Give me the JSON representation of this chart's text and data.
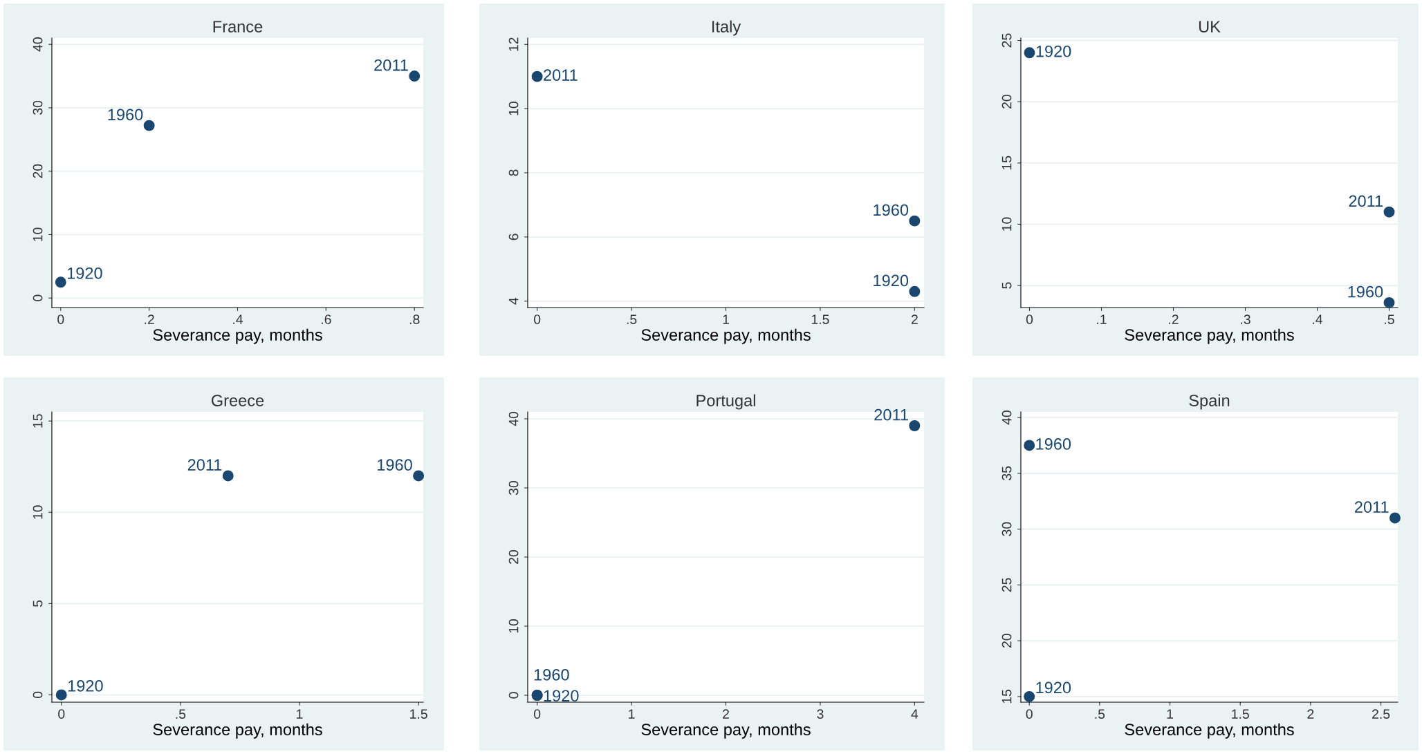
{
  "chart_data": [
    {
      "type": "scatter",
      "title": "France",
      "xlabel": "Severance pay, months",
      "x": [
        0,
        0.2,
        0.8
      ],
      "values": [
        2.5,
        27.2,
        35
      ],
      "annotations": [
        {
          "text": "1920",
          "x": 0,
          "y": 2.5
        },
        {
          "text": "1960",
          "x": 0.2,
          "y": 27.2
        },
        {
          "text": "2011",
          "x": 0.8,
          "y": 35
        }
      ],
      "color": "#1a476f",
      "marker": "circle",
      "grid": "y",
      "xlim": [
        -0.02,
        0.82
      ],
      "ylim": [
        -1.5,
        41
      ],
      "xticks": [
        {
          "value": 0,
          "label": "0"
        },
        {
          "value": 0.2,
          "label": ".2"
        },
        {
          "value": 0.4,
          "label": ".4"
        },
        {
          "value": 0.6,
          "label": ".6"
        },
        {
          "value": 0.8,
          "label": ".8"
        }
      ],
      "yticks": [
        0,
        10,
        20,
        30,
        40
      ]
    },
    {
      "type": "scatter",
      "title": "Italy",
      "xlabel": "Severance pay, months",
      "x": [
        2,
        2,
        0
      ],
      "values": [
        4.3,
        6.5,
        11
      ],
      "annotations": [
        {
          "text": "1920",
          "x": 2,
          "y": 4.3
        },
        {
          "text": "1960",
          "x": 2,
          "y": 6.5
        },
        {
          "text": "2011",
          "x": 0,
          "y": 11
        }
      ],
      "color": "#1a476f",
      "marker": "circle",
      "grid": "y",
      "xlim": [
        -0.05,
        2.05
      ],
      "ylim": [
        3.8,
        12.2
      ],
      "xticks": [
        0,
        {
          "value": 0.5,
          "label": ".5"
        },
        1,
        1.5,
        2
      ],
      "yticks": [
        4,
        6,
        8,
        10,
        12
      ]
    },
    {
      "type": "scatter",
      "title": "UK",
      "xlabel": "Severance pay, months",
      "x": [
        0,
        0.5,
        0.5
      ],
      "values": [
        24,
        3.6,
        11
      ],
      "annotations": [
        {
          "text": "1920",
          "x": 0,
          "y": 24
        },
        {
          "text": "1960",
          "x": 0.5,
          "y": 3.6
        },
        {
          "text": "2011",
          "x": 0.5,
          "y": 11
        }
      ],
      "color": "#1a476f",
      "marker": "circle",
      "grid": "y",
      "xlim": [
        -0.012,
        0.512
      ],
      "ylim": [
        3.2,
        25.2
      ],
      "xticks": [
        0,
        {
          "value": 0.1,
          "label": ".1"
        },
        {
          "value": 0.2,
          "label": ".2"
        },
        {
          "value": 0.3,
          "label": ".3"
        },
        {
          "value": 0.4,
          "label": ".4"
        },
        {
          "value": 0.5,
          "label": ".5"
        }
      ],
      "yticks": [
        5,
        10,
        15,
        20,
        25
      ]
    },
    {
      "type": "scatter",
      "title": "Greece",
      "xlabel": "Severance pay, months",
      "x": [
        0,
        1.5,
        0.7
      ],
      "values": [
        0,
        12,
        12
      ],
      "annotations": [
        {
          "text": "1920",
          "x": 0,
          "y": 0
        },
        {
          "text": "1960",
          "x": 1.5,
          "y": 12
        },
        {
          "text": "2011",
          "x": 0.7,
          "y": 12
        }
      ],
      "color": "#1a476f",
      "marker": "circle",
      "grid": "y",
      "xlim": [
        -0.04,
        1.52
      ],
      "ylim": [
        -0.4,
        15.5
      ],
      "xticks": [
        0,
        {
          "value": 0.5,
          "label": ".5"
        },
        1,
        1.5
      ],
      "yticks": [
        0,
        5,
        10,
        15
      ]
    },
    {
      "type": "scatter",
      "title": "Portugal",
      "xlabel": "Severance pay, months",
      "x": [
        0,
        0,
        4
      ],
      "values": [
        0,
        0,
        39
      ],
      "annotations": [
        {
          "text": "1920",
          "x": 0,
          "y": 0
        },
        {
          "text": "1960",
          "x": 0,
          "y": 0
        },
        {
          "text": "2011",
          "x": 4,
          "y": 39
        }
      ],
      "color": "#1a476f",
      "marker": "circle",
      "grid": "y",
      "xlim": [
        -0.1,
        4.1
      ],
      "ylim": [
        -1,
        41
      ],
      "xticks": [
        0,
        1,
        2,
        3,
        4
      ],
      "yticks": [
        0,
        10,
        20,
        30,
        40
      ]
    },
    {
      "type": "scatter",
      "title": "Spain",
      "xlabel": "Severance pay, months",
      "x": [
        0,
        0,
        2.6
      ],
      "values": [
        15,
        37.5,
        31
      ],
      "annotations": [
        {
          "text": "1920",
          "x": 0,
          "y": 15
        },
        {
          "text": "1960",
          "x": 0,
          "y": 37.5
        },
        {
          "text": "2011",
          "x": 2.6,
          "y": 31
        }
      ],
      "color": "#1a476f",
      "marker": "circle",
      "grid": "y",
      "xlim": [
        -0.06,
        2.62
      ],
      "ylim": [
        14.5,
        40.5
      ],
      "xticks": [
        0,
        {
          "value": 0.5,
          "label": ".5"
        },
        1,
        1.5,
        2,
        2.5
      ],
      "yticks": [
        15,
        20,
        25,
        30,
        35,
        40
      ]
    }
  ]
}
